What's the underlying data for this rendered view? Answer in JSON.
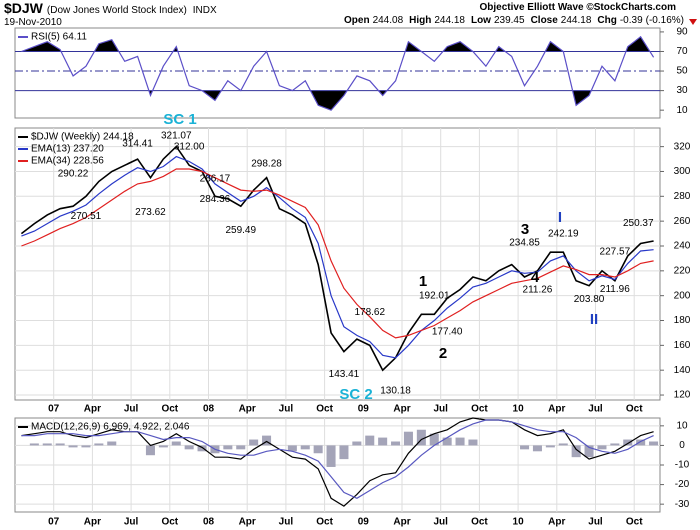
{
  "header": {
    "symbol": "$DJW",
    "name": "(Dow Jones World Stock Index)",
    "exchange": "INDX",
    "date": "19-Nov-2010",
    "credit": "Objective Elliott Wave ©StockCharts.com",
    "quote": [
      {
        "label": "Open",
        "value": 244.08
      },
      {
        "label": "High",
        "value": 244.18
      },
      {
        "label": "Low",
        "value": 239.45
      },
      {
        "label": "Close",
        "value": 244.18
      },
      {
        "label": "Chg",
        "value": -0.39
      }
    ],
    "change_percent": {
      "value": -0.16,
      "label": "(-0.16%)"
    }
  },
  "chart_data": [
    {
      "type": "line",
      "categories": [
        "2006-10",
        "2006-11",
        "2006-12",
        "2007-01",
        "2007-02",
        "2007-03",
        "2007-04",
        "2007-05",
        "2007-06",
        "2007-07",
        "2007-08",
        "2007-09",
        "2007-10",
        "2007-11",
        "2007-12",
        "2008-01",
        "2008-02",
        "2008-03",
        "2008-04",
        "2008-05",
        "2008-06",
        "2008-07",
        "2008-08",
        "2008-09",
        "2008-10",
        "2008-11",
        "2008-12",
        "2009-01",
        "2009-02",
        "2009-03",
        "2009-04",
        "2009-05",
        "2009-06",
        "2009-07",
        "2009-08",
        "2009-09",
        "2009-10",
        "2009-11",
        "2009-12",
        "2010-01",
        "2010-02",
        "2010-03",
        "2010-04",
        "2010-05",
        "2010-06",
        "2010-07",
        "2010-08",
        "2010-09",
        "2010-10",
        "2010-11"
      ],
      "series": [
        {
          "name": "RSI(5) 64.11",
          "color": "#5b4fc8",
          "values": [
            70,
            75,
            80,
            72,
            45,
            55,
            78,
            82,
            60,
            65,
            25,
            55,
            75,
            35,
            30,
            20,
            40,
            30,
            55,
            70,
            35,
            30,
            40,
            15,
            10,
            25,
            45,
            40,
            25,
            40,
            80,
            70,
            60,
            75,
            80,
            70,
            55,
            75,
            65,
            35,
            55,
            80,
            70,
            15,
            25,
            55,
            40,
            75,
            85,
            64
          ]
        }
      ],
      "ylim": [
        2,
        94
      ],
      "yticks": [
        10,
        30,
        50,
        70,
        90
      ],
      "overbought": 70,
      "oversold": 30,
      "midline": 50,
      "level_color": "#33339a",
      "fill_color": "#000000",
      "grid": true
    },
    {
      "type": "line",
      "categories": [
        "2006-10",
        "2006-11",
        "2006-12",
        "2007-01",
        "2007-02",
        "2007-03",
        "2007-04",
        "2007-05",
        "2007-06",
        "2007-07",
        "2007-08",
        "2007-09",
        "2007-10",
        "2007-11",
        "2007-12",
        "2008-01",
        "2008-02",
        "2008-03",
        "2008-04",
        "2008-05",
        "2008-06",
        "2008-07",
        "2008-08",
        "2008-09",
        "2008-10",
        "2008-11",
        "2008-12",
        "2009-01",
        "2009-02",
        "2009-03",
        "2009-04",
        "2009-05",
        "2009-06",
        "2009-07",
        "2009-08",
        "2009-09",
        "2009-10",
        "2009-11",
        "2009-12",
        "2010-01",
        "2010-02",
        "2010-03",
        "2010-04",
        "2010-05",
        "2010-06",
        "2010-07",
        "2010-08",
        "2010-09",
        "2010-10",
        "2010-11"
      ],
      "series": [
        {
          "name": "$DJW (Weekly) 244.18",
          "color": "#000000",
          "values": [
            250,
            258,
            265,
            270,
            272,
            280,
            292,
            300,
            305,
            310,
            295,
            310,
            320,
            305,
            300,
            280,
            278,
            272,
            285,
            295,
            270,
            265,
            258,
            225,
            170,
            155,
            165,
            160,
            140,
            150,
            170,
            185,
            185,
            198,
            205,
            215,
            212,
            220,
            225,
            215,
            220,
            235,
            235,
            212,
            208,
            220,
            212,
            232,
            242,
            244
          ]
        },
        {
          "name": "EMA(13) 237.20",
          "color": "#2838c8",
          "values": [
            248,
            252,
            258,
            264,
            268,
            273,
            282,
            290,
            297,
            303,
            300,
            304,
            312,
            308,
            302,
            290,
            283,
            276,
            280,
            287,
            279,
            270,
            263,
            242,
            200,
            175,
            168,
            163,
            152,
            150,
            160,
            172,
            180,
            190,
            198,
            207,
            210,
            215,
            220,
            218,
            219,
            228,
            232,
            220,
            212,
            216,
            213,
            226,
            236,
            237
          ]
        },
        {
          "name": "EMA(34) 228.56",
          "color": "#e02020",
          "values": [
            240,
            244,
            249,
            254,
            258,
            263,
            270,
            277,
            284,
            290,
            292,
            296,
            302,
            302,
            300,
            295,
            290,
            285,
            284,
            285,
            281,
            276,
            271,
            257,
            228,
            206,
            193,
            183,
            172,
            166,
            168,
            172,
            176,
            182,
            188,
            195,
            200,
            205,
            210,
            212,
            214,
            219,
            224,
            221,
            217,
            217,
            215,
            220,
            226,
            228
          ]
        }
      ],
      "ylim": [
        116,
        335
      ],
      "yticks": [
        120,
        140,
        160,
        180,
        200,
        220,
        240,
        260,
        280,
        300,
        320
      ],
      "grid": true,
      "xticks": [
        {
          "value": "2007-01",
          "label": "07"
        },
        {
          "value": "2007-04",
          "label": "Apr"
        },
        {
          "value": "2007-07",
          "label": "Jul"
        },
        {
          "value": "2007-10",
          "label": "Oct"
        },
        {
          "value": "2008-01",
          "label": "08"
        },
        {
          "value": "2008-04",
          "label": "Apr"
        },
        {
          "value": "2008-07",
          "label": "Jul"
        },
        {
          "value": "2008-10",
          "label": "Oct"
        },
        {
          "value": "2009-01",
          "label": "09"
        },
        {
          "value": "2009-04",
          "label": "Apr"
        },
        {
          "value": "2009-07",
          "label": "Jul"
        },
        {
          "value": "2009-10",
          "label": "Oct"
        },
        {
          "value": "2010-01",
          "label": "10"
        },
        {
          "value": "2010-04",
          "label": "Apr"
        },
        {
          "value": "2010-07",
          "label": "Jul"
        },
        {
          "value": "2010-10",
          "label": "Oct"
        }
      ],
      "pivots": [
        {
          "x": "2007-10",
          "value": 321.07
        },
        {
          "x": "2007-07",
          "value": 314.41
        },
        {
          "x": "2007-11",
          "value": 312,
          "label": "312.00"
        },
        {
          "x": "2007-02",
          "value": 290.22
        },
        {
          "x": "2007-03",
          "value": 270.51
        },
        {
          "x": "2007-08",
          "value": 273.62
        },
        {
          "x": "2008-01",
          "value": 286.17
        },
        {
          "x": "2008-01",
          "value": 284.36
        },
        {
          "x": "2008-05",
          "value": 298.28
        },
        {
          "x": "2008-03",
          "value": 259.49
        },
        {
          "x": "2009-01",
          "value": 178.62
        },
        {
          "x": "2008-11",
          "value": 143.41
        },
        {
          "x": "2009-03",
          "value": 130.18
        },
        {
          "x": "2009-06",
          "value": 192.01
        },
        {
          "x": "2009-07",
          "value": 177.4,
          "label": "177.40"
        },
        {
          "x": "2010-01",
          "value": 234.85
        },
        {
          "x": "2010-02",
          "value": 211.26
        },
        {
          "x": "2010-04",
          "value": 242.19
        },
        {
          "x": "2010-06",
          "value": 203.8,
          "label": "203.80"
        },
        {
          "x": "2010-08",
          "value": 227.57
        },
        {
          "x": "2010-08",
          "value": 211.96
        },
        {
          "x": "2010-11",
          "value": 250.37
        }
      ],
      "wave_labels": [
        {
          "text": "SC 1",
          "color": "#1ab2d6"
        },
        {
          "text": "SC 2",
          "color": "#1ab2d6"
        },
        {
          "text": "1",
          "color": "#000000"
        },
        {
          "text": "2",
          "color": "#000000"
        },
        {
          "text": "3",
          "color": "#000000"
        },
        {
          "text": "4",
          "color": "#000000"
        },
        {
          "text": "I",
          "color": "#2040c0"
        },
        {
          "text": "II",
          "color": "#2040c0"
        }
      ]
    },
    {
      "type": "line",
      "categories": [
        "2006-10",
        "2006-11",
        "2006-12",
        "2007-01",
        "2007-02",
        "2007-03",
        "2007-04",
        "2007-05",
        "2007-06",
        "2007-07",
        "2007-08",
        "2007-09",
        "2007-10",
        "2007-11",
        "2007-12",
        "2008-01",
        "2008-02",
        "2008-03",
        "2008-04",
        "2008-05",
        "2008-06",
        "2008-07",
        "2008-08",
        "2008-09",
        "2008-10",
        "2008-11",
        "2008-12",
        "2009-01",
        "2009-02",
        "2009-03",
        "2009-04",
        "2009-05",
        "2009-06",
        "2009-07",
        "2009-08",
        "2009-09",
        "2009-10",
        "2009-11",
        "2009-12",
        "2010-01",
        "2010-02",
        "2010-03",
        "2010-04",
        "2010-05",
        "2010-06",
        "2010-07",
        "2010-08",
        "2010-09",
        "2010-10",
        "2010-11"
      ],
      "series": [
        {
          "type": "bar",
          "color": "#a4a4b8",
          "values": [
            0,
            1,
            1,
            1,
            -1,
            -1,
            1,
            2,
            0,
            0,
            -5,
            -1,
            2,
            -2,
            -3,
            -4,
            -2,
            -2,
            3,
            5,
            0,
            -3,
            -2,
            -4,
            -11,
            -7,
            2,
            5,
            4,
            2,
            7,
            8,
            6,
            4,
            4,
            3,
            0,
            0,
            0,
            -2,
            -3,
            -1,
            1,
            -6,
            -6,
            -2,
            1,
            3,
            3,
            2
          ]
        },
        {
          "name": "MACD(12,26,9) 6.969, 4.922, 2.046",
          "color": "#000000",
          "values": [
            5,
            6,
            7,
            7,
            5,
            4,
            6,
            8,
            7,
            7,
            0,
            2,
            6,
            2,
            -1,
            -6,
            -6,
            -7,
            -2,
            2,
            -2,
            -6,
            -7,
            -12,
            -27,
            -31,
            -25,
            -18,
            -15,
            -14,
            -4,
            3,
            6,
            8,
            12,
            14,
            13,
            13,
            12,
            8,
            5,
            6,
            8,
            -2,
            -7,
            -5,
            -3,
            1,
            5,
            7
          ]
        },
        {
          "color": "#5858c0",
          "values": [
            5,
            5,
            6,
            6,
            6,
            5,
            5,
            6,
            7,
            7,
            5,
            3,
            4,
            4,
            2,
            -2,
            -4,
            -5,
            -5,
            -3,
            -2,
            -3,
            -5,
            -8,
            -16,
            -24,
            -27,
            -23,
            -19,
            -16,
            -11,
            -5,
            0,
            4,
            8,
            11,
            13,
            13,
            12,
            10,
            8,
            7,
            7,
            4,
            -1,
            -3,
            -4,
            -2,
            2,
            5
          ]
        }
      ],
      "ylim": [
        -34,
        14
      ],
      "yticks": [
        -30,
        -20,
        -10,
        0,
        10
      ],
      "grid": true,
      "xticks": [
        {
          "value": "2007-01",
          "label": "07"
        },
        {
          "value": "2007-04",
          "label": "Apr"
        },
        {
          "value": "2007-07",
          "label": "Jul"
        },
        {
          "value": "2007-10",
          "label": "Oct"
        },
        {
          "value": "2008-01",
          "label": "08"
        },
        {
          "value": "2008-04",
          "label": "Apr"
        },
        {
          "value": "2008-07",
          "label": "Jul"
        },
        {
          "value": "2008-10",
          "label": "Oct"
        },
        {
          "value": "2009-01",
          "label": "09"
        },
        {
          "value": "2009-04",
          "label": "Apr"
        },
        {
          "value": "2009-07",
          "label": "Jul"
        },
        {
          "value": "2009-10",
          "label": "Oct"
        },
        {
          "value": "2010-01",
          "label": "10"
        },
        {
          "value": "2010-04",
          "label": "Apr"
        },
        {
          "value": "2010-07",
          "label": "Jul"
        },
        {
          "value": "2010-10",
          "label": "Oct"
        }
      ]
    }
  ]
}
